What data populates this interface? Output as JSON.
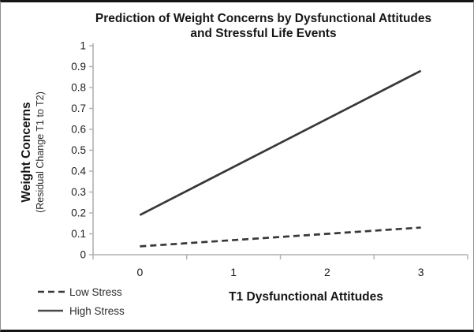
{
  "chart_data": {
    "type": "line",
    "title": "Prediction of Weight Concerns by Dysfunctional Attitudes and Stressful Life Events",
    "xlabel": "T1 Dysfunctional Attitudes",
    "ylabel": "Weight Concerns (Residual Change T1 to T2)",
    "ylabel_main": "Weight Concerns",
    "ylabel_sub": "(Residual Change T1 to T2)",
    "categories": [
      0,
      1,
      2,
      3
    ],
    "x_tick_labels": [
      "0",
      "1",
      "2",
      "3"
    ],
    "y_ticks": [
      0,
      0.1,
      0.2,
      0.3,
      0.4,
      0.5,
      0.6,
      0.7,
      0.8,
      0.9,
      1
    ],
    "ylim": [
      0,
      1
    ],
    "grid": false,
    "legend_position": "bottom-left",
    "series": [
      {
        "name": "Low Stress",
        "line_style": "dashed",
        "x": [
          0,
          3
        ],
        "values": [
          0.04,
          0.13
        ]
      },
      {
        "name": "High Stress",
        "line_style": "solid",
        "x": [
          0,
          3
        ],
        "values": [
          0.19,
          0.88
        ]
      }
    ],
    "colors": {
      "line": "#383838",
      "axis": "#b0b0b0",
      "text": "#1c1c1c"
    }
  }
}
